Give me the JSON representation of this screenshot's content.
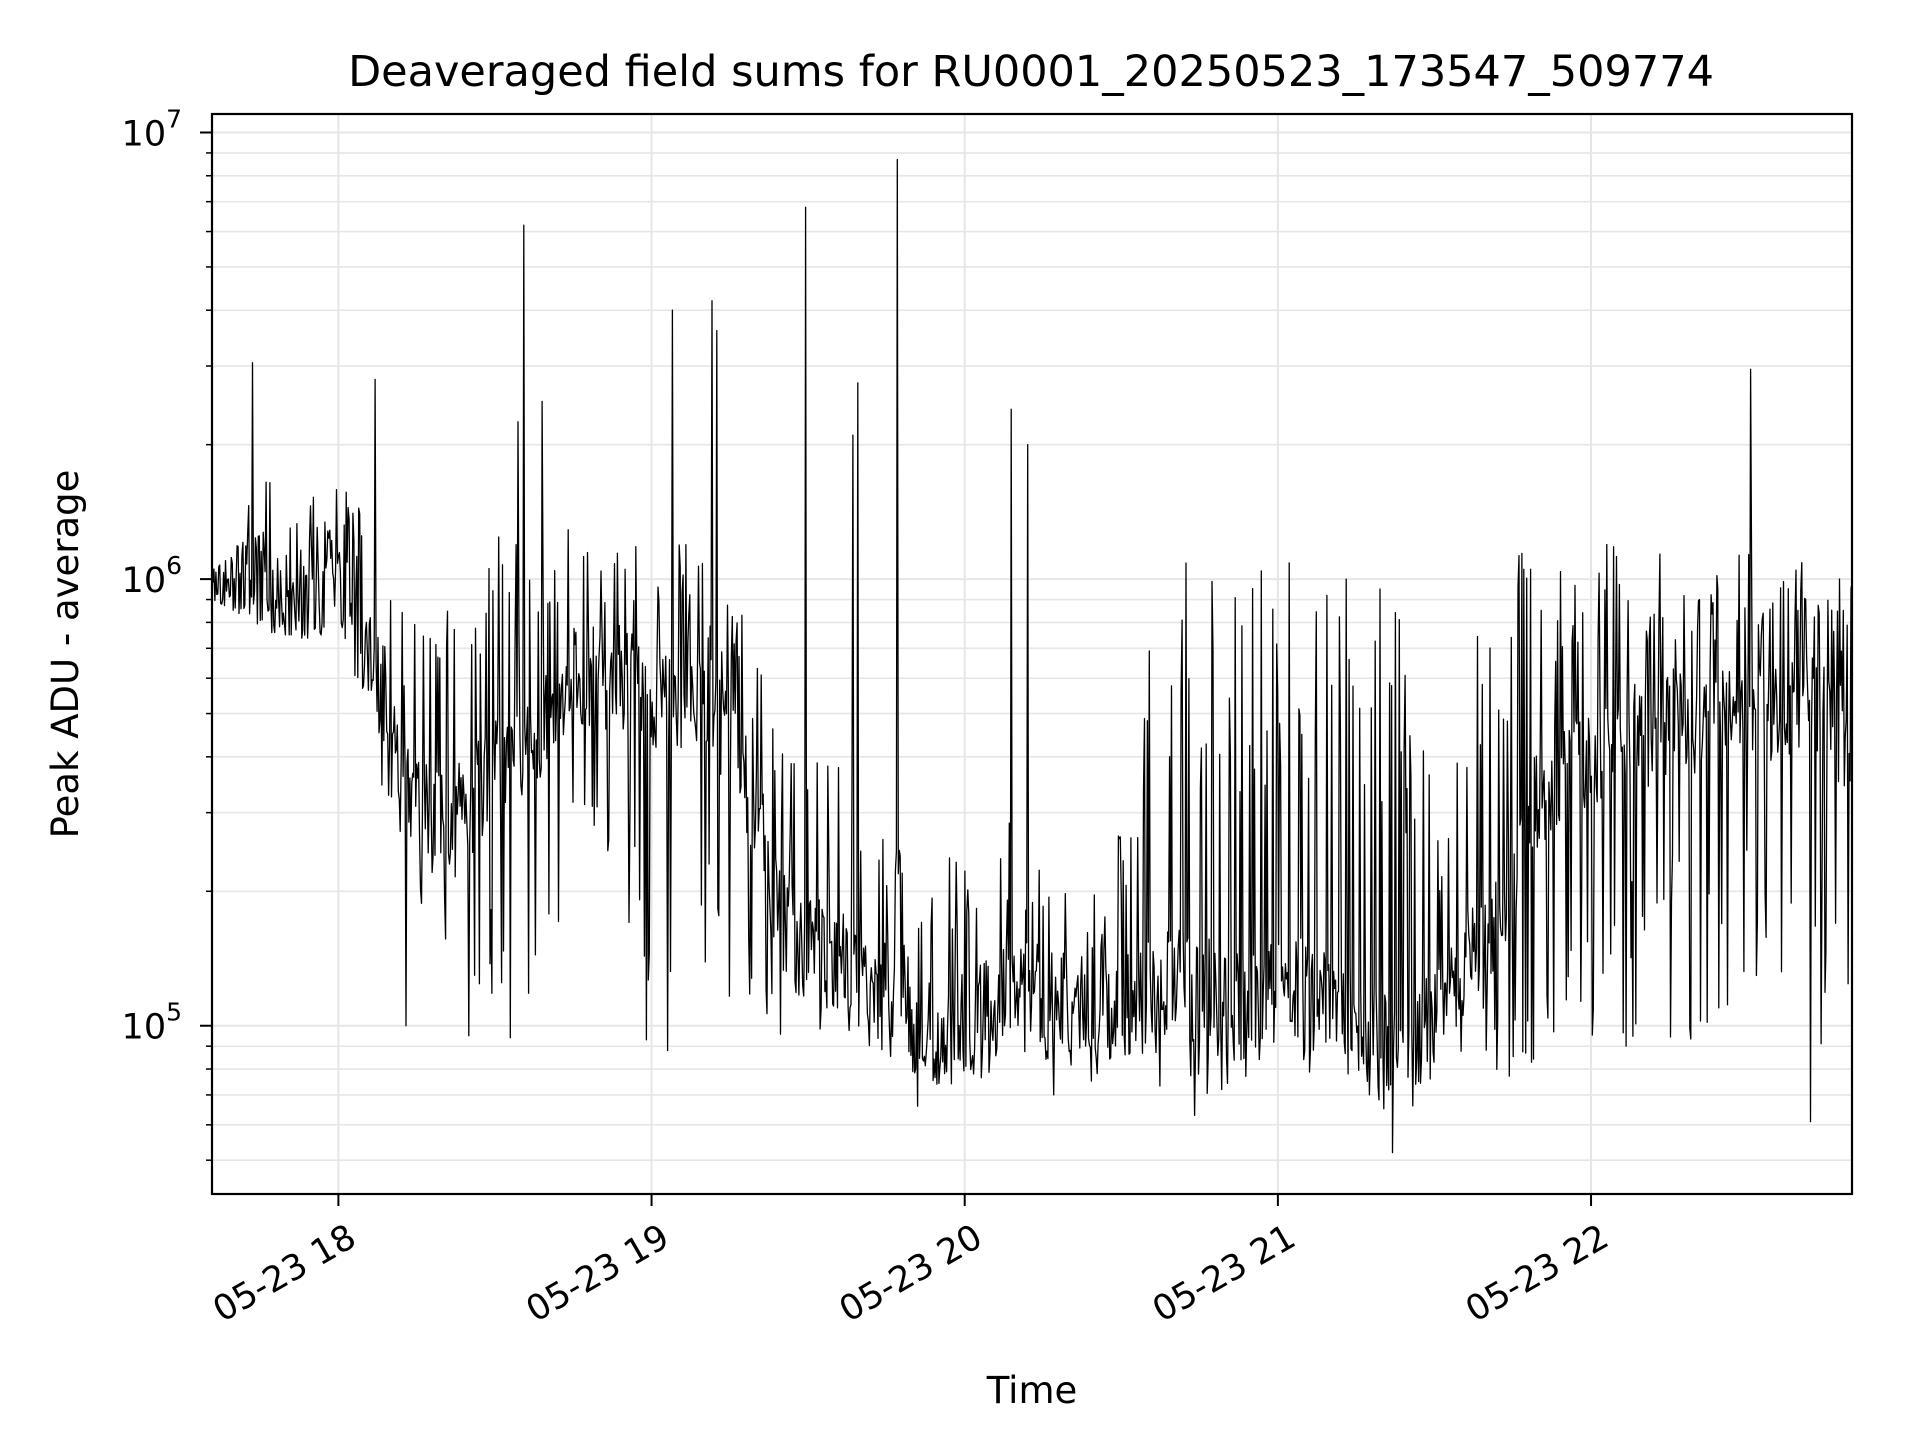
{
  "chart_data": {
    "type": "line",
    "title": "Deaveraged field sums for RU0001_20250523_173547_509774",
    "xlabel": "Time",
    "ylabel": "Peak ADU - average",
    "y_scale": "log",
    "ylim": [
      42000,
      11000000
    ],
    "xlim": [
      "2025-05-23 17:35:47",
      "2025-05-23 22:50:00"
    ],
    "grid": true,
    "legend": "none",
    "line_color": "#000000",
    "grid_color": "#e6e6e6",
    "x_ticks": [
      {
        "value": "2025-05-23 18:00",
        "label": "05-23 18"
      },
      {
        "value": "2025-05-23 19:00",
        "label": "05-23 19"
      },
      {
        "value": "2025-05-23 20:00",
        "label": "05-23 20"
      },
      {
        "value": "2025-05-23 21:00",
        "label": "05-23 21"
      },
      {
        "value": "2025-05-23 22:00",
        "label": "05-23 22"
      }
    ],
    "y_ticks": [
      {
        "value": 100000,
        "base": "10",
        "exp": "5"
      },
      {
        "value": 1000000,
        "base": "10",
        "exp": "6"
      },
      {
        "value": 10000000,
        "base": "10",
        "exp": "7"
      }
    ],
    "series": [
      {
        "x": [
          "2025-05-23 17:36",
          "2025-05-23 17:40",
          "2025-05-23 17:44",
          "2025-05-23 17:48",
          "2025-05-23 17:52",
          "2025-05-23 17:56",
          "2025-05-23 18:00",
          "2025-05-23 18:04",
          "2025-05-23 18:08",
          "2025-05-23 18:12",
          "2025-05-23 18:16",
          "2025-05-23 18:20",
          "2025-05-23 18:24",
          "2025-05-23 18:28",
          "2025-05-23 18:32",
          "2025-05-23 18:36",
          "2025-05-23 18:40",
          "2025-05-23 18:44",
          "2025-05-23 18:48",
          "2025-05-23 18:52",
          "2025-05-23 18:56",
          "2025-05-23 19:00",
          "2025-05-23 19:04",
          "2025-05-23 19:08",
          "2025-05-23 19:12",
          "2025-05-23 19:16",
          "2025-05-23 19:20",
          "2025-05-23 19:24",
          "2025-05-23 19:28",
          "2025-05-23 19:32",
          "2025-05-23 19:36",
          "2025-05-23 19:40",
          "2025-05-23 19:44",
          "2025-05-23 19:48",
          "2025-05-23 19:52",
          "2025-05-23 19:56",
          "2025-05-23 20:00",
          "2025-05-23 20:04",
          "2025-05-23 20:08",
          "2025-05-23 20:12",
          "2025-05-23 20:16",
          "2025-05-23 20:20",
          "2025-05-23 20:24",
          "2025-05-23 20:28",
          "2025-05-23 20:32",
          "2025-05-23 20:36",
          "2025-05-23 20:40",
          "2025-05-23 20:44",
          "2025-05-23 20:48",
          "2025-05-23 20:52",
          "2025-05-23 20:56",
          "2025-05-23 21:00",
          "2025-05-23 21:04",
          "2025-05-23 21:08",
          "2025-05-23 21:12",
          "2025-05-23 21:16",
          "2025-05-23 21:20",
          "2025-05-23 21:24",
          "2025-05-23 21:28",
          "2025-05-23 21:32",
          "2025-05-23 21:36",
          "2025-05-23 21:40",
          "2025-05-23 21:44",
          "2025-05-23 21:48",
          "2025-05-23 21:52",
          "2025-05-23 21:56",
          "2025-05-23 22:00",
          "2025-05-23 22:04",
          "2025-05-23 22:08",
          "2025-05-23 22:12",
          "2025-05-23 22:16",
          "2025-05-23 22:20",
          "2025-05-23 22:24",
          "2025-05-23 22:28",
          "2025-05-23 22:32",
          "2025-05-23 22:36",
          "2025-05-23 22:40",
          "2025-05-23 22:44",
          "2025-05-23 22:48"
        ],
        "baseline": [
          950000,
          1000000,
          1000000,
          950000,
          900000,
          950000,
          1000000,
          800000,
          600000,
          400000,
          300000,
          280000,
          300000,
          350000,
          400000,
          400000,
          500000,
          600000,
          600000,
          600000,
          600000,
          550000,
          550000,
          550000,
          500000,
          400000,
          300000,
          180000,
          160000,
          150000,
          140000,
          130000,
          125000,
          120000,
          100000,
          95000,
          100000,
          110000,
          120000,
          120000,
          115000,
          110000,
          110000,
          110000,
          110000,
          120000,
          130000,
          120000,
          120000,
          115000,
          110000,
          120000,
          120000,
          120000,
          110000,
          100000,
          95000,
          90000,
          100000,
          120000,
          140000,
          150000,
          200000,
          300000,
          350000,
          400000,
          400000,
          450000,
          450000,
          450000,
          500000,
          450000,
          500000,
          500000,
          500000,
          500000,
          550000,
          500000,
          450000
        ],
        "high": [
          1050000,
          1150000,
          1800000,
          1700000,
          1500000,
          1600000,
          1700000,
          1500000,
          1200000,
          900000,
          800000,
          900000,
          1000000,
          1200000,
          1300000,
          1300000,
          1400000,
          1300000,
          1200000,
          1200000,
          1200000,
          1200000,
          1200000,
          1200000,
          1100000,
          900000,
          800000,
          500000,
          400000,
          450000,
          450000,
          350000,
          300000,
          250000,
          250000,
          220000,
          300000,
          350000,
          300000,
          250000,
          250000,
          200000,
          200000,
          200000,
          500000,
          800000,
          1000000,
          1200000,
          1200000,
          1200000,
          1200000,
          1250000,
          1200000,
          1200000,
          1100000,
          1100000,
          1000000,
          800000,
          500000,
          300000,
          600000,
          900000,
          1100000,
          1200000,
          1200000,
          1200000,
          1200000,
          1200000,
          1200000,
          1200000,
          1150000,
          1100000,
          1100000,
          1150000,
          1150000,
          1150000,
          1150000,
          1100000,
          1050000
        ],
        "low": [
          900000,
          850000,
          800000,
          750000,
          750000,
          700000,
          650000,
          450000,
          350000,
          250000,
          180000,
          150000,
          130000,
          120000,
          110000,
          110000,
          150000,
          180000,
          150000,
          140000,
          130000,
          120000,
          115000,
          110000,
          110000,
          100000,
          95000,
          90000,
          90000,
          90000,
          95000,
          90000,
          85000,
          80000,
          75000,
          70000,
          72000,
          75000,
          80000,
          80000,
          80000,
          75000,
          75000,
          75000,
          75000,
          72000,
          70000,
          70000,
          70000,
          75000,
          75000,
          75000,
          70000,
          70000,
          75000,
          70000,
          65000,
          60000,
          60000,
          70000,
          75000,
          75000,
          75000,
          80000,
          80000,
          80000,
          80000,
          80000,
          85000,
          85000,
          85000,
          85000,
          90000,
          90000,
          90000,
          90000,
          90000,
          90000,
          90000
        ],
        "spikes": [
          {
            "x": "2025-05-23 17:43:30",
            "y": 3050000
          },
          {
            "x": "2025-05-23 18:07:00",
            "y": 2800000
          },
          {
            "x": "2025-05-23 18:34:30",
            "y": 2250000
          },
          {
            "x": "2025-05-23 18:35:30",
            "y": 6200000
          },
          {
            "x": "2025-05-23 18:39:00",
            "y": 2500000
          },
          {
            "x": "2025-05-23 19:04:00",
            "y": 4000000
          },
          {
            "x": "2025-05-23 19:11:30",
            "y": 4200000
          },
          {
            "x": "2025-05-23 19:12:30",
            "y": 3600000
          },
          {
            "x": "2025-05-23 19:29:30",
            "y": 6800000
          },
          {
            "x": "2025-05-23 19:38:30",
            "y": 2100000
          },
          {
            "x": "2025-05-23 19:39:30",
            "y": 2750000
          },
          {
            "x": "2025-05-23 19:47:00",
            "y": 8700000
          },
          {
            "x": "2025-05-23 20:09:00",
            "y": 2400000
          },
          {
            "x": "2025-05-23 20:12:00",
            "y": 2000000
          },
          {
            "x": "2025-05-23 22:30:30",
            "y": 2950000
          }
        ],
        "dips": [
          {
            "x": "2025-05-23 18:13:00",
            "y": 100000
          },
          {
            "x": "2025-05-23 18:25:00",
            "y": 95000
          },
          {
            "x": "2025-05-23 18:33:00",
            "y": 94000
          },
          {
            "x": "2025-05-23 18:59:00",
            "y": 93000
          },
          {
            "x": "2025-05-23 19:03:00",
            "y": 88000
          },
          {
            "x": "2025-05-23 19:51:00",
            "y": 66000
          },
          {
            "x": "2025-05-23 20:17:00",
            "y": 70000
          },
          {
            "x": "2025-05-23 20:44:00",
            "y": 63000
          },
          {
            "x": "2025-05-23 21:22:00",
            "y": 52000
          },
          {
            "x": "2025-05-23 22:42:00",
            "y": 61000
          }
        ]
      }
    ]
  }
}
